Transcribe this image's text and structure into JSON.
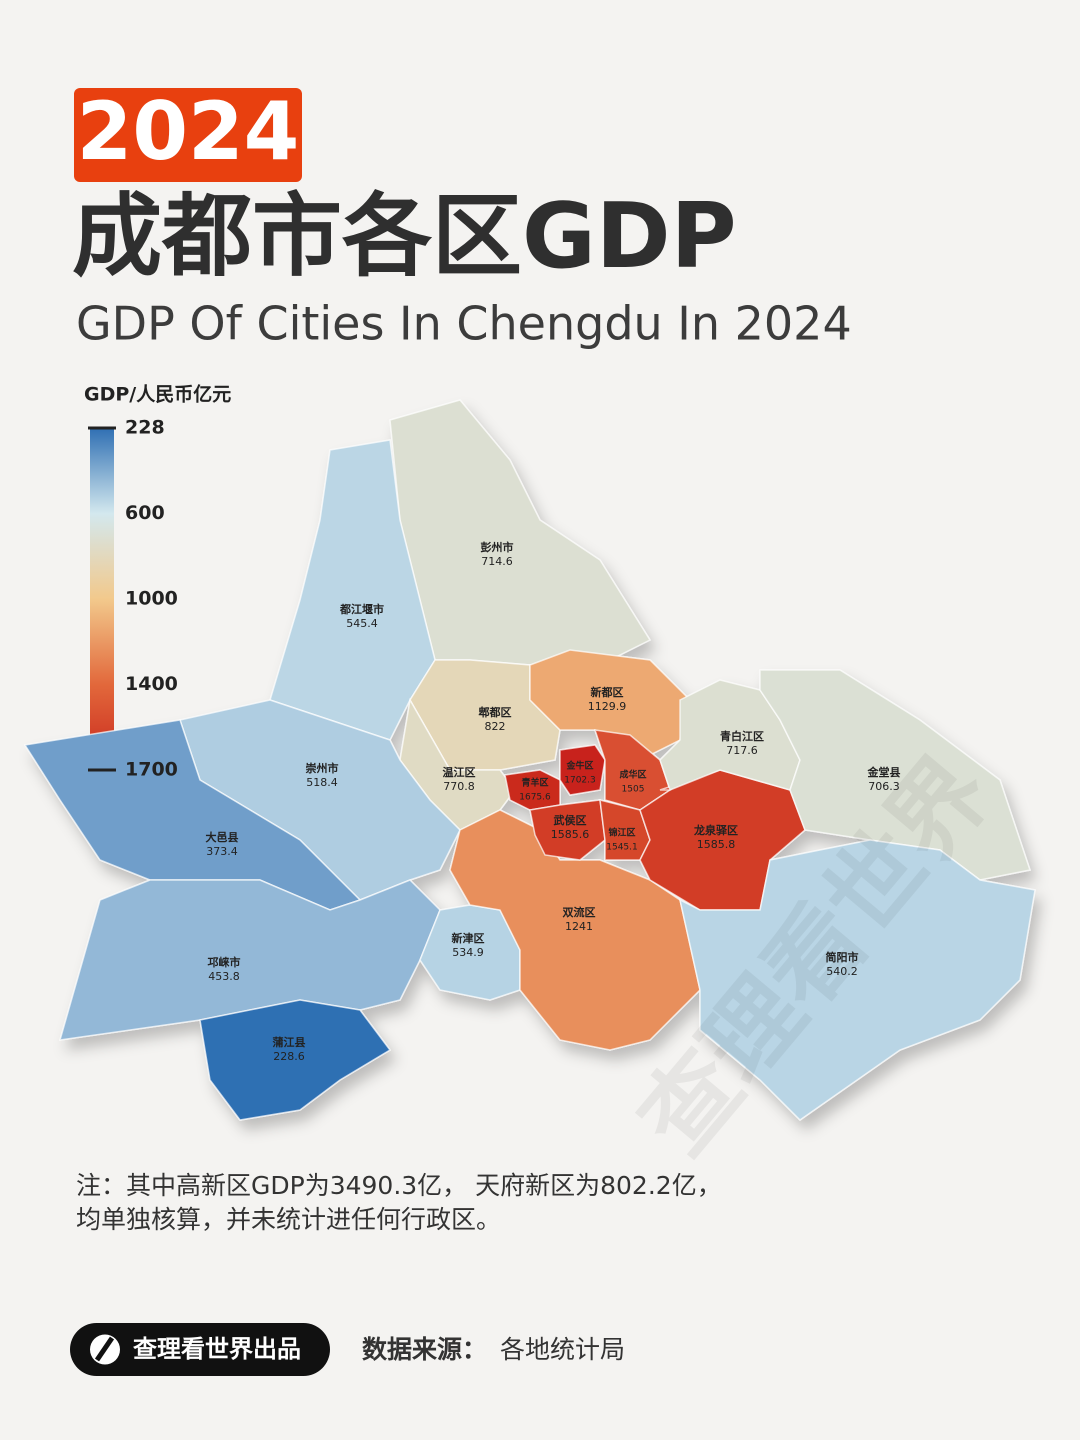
{
  "badge": "2024",
  "title": "成都市各区GDP",
  "subtitle": "GDP Of Cities In Chengdu In 2024",
  "chart_data": {
    "type": "choropleth",
    "legend_title": "GDP/人民币亿元",
    "scale": {
      "ticks": [
        228,
        600,
        1000,
        1400,
        1700
      ],
      "colors": [
        "#2f6fb3",
        "#d3e8ee",
        "#f2c98c",
        "#e2683b",
        "#c8241b"
      ]
    },
    "regions": [
      {
        "name": "彭州市",
        "value": 714.6
      },
      {
        "name": "都江堰市",
        "value": 545.4
      },
      {
        "name": "郫都区",
        "value": 822
      },
      {
        "name": "新都区",
        "value": 1129.9
      },
      {
        "name": "温江区",
        "value": 770.8
      },
      {
        "name": "崇州市",
        "value": 518.4
      },
      {
        "name": "大邑县",
        "value": 373.4
      },
      {
        "name": "邛崃市",
        "value": 453.8
      },
      {
        "name": "蒲江县",
        "value": 228.6
      },
      {
        "name": "新津区",
        "value": 534.9
      },
      {
        "name": "双流区",
        "value": 1241
      },
      {
        "name": "青羊区",
        "value": 1675.6
      },
      {
        "name": "金牛区",
        "value": 1702.3
      },
      {
        "name": "成华区",
        "value": 1505
      },
      {
        "name": "武侯区",
        "value": 1585.6
      },
      {
        "name": "锦江区",
        "value": 1545.1
      },
      {
        "name": "龙泉驿区",
        "value": 1585.8
      },
      {
        "name": "青白江区",
        "value": 717.6
      },
      {
        "name": "金堂县",
        "value": 706.3
      },
      {
        "name": "简阳市",
        "value": 540.2
      }
    ]
  },
  "watermark": "查理看世界",
  "note": [
    "注：其中高新区GDP为3490.3亿， 天府新区为802.2亿，",
    "均单独核算，并未统计进任何行政区。"
  ],
  "brand": "查理看世界出品",
  "source_label": "数据来源：",
  "source": "各地统计局"
}
